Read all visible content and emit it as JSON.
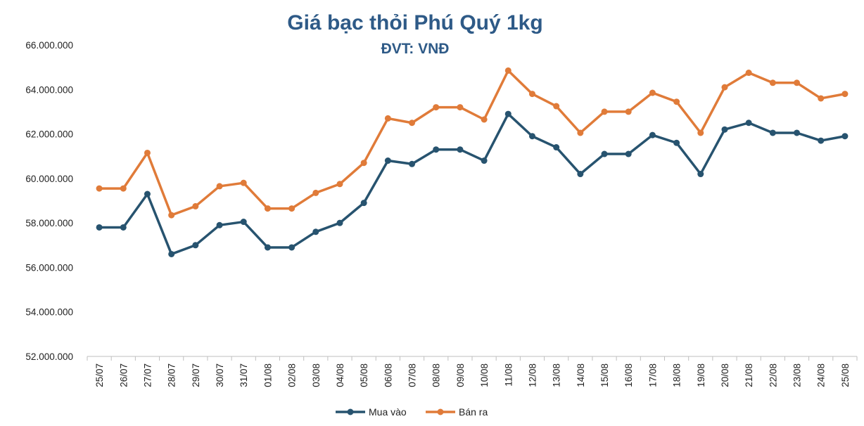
{
  "chart_data": {
    "type": "line",
    "title": "Giá bạc thỏi Phú Quý 1kg",
    "subtitle": "ĐVT: VNĐ",
    "categories": [
      "25/07",
      "26/07",
      "27/07",
      "28/07",
      "29/07",
      "30/07",
      "31/07",
      "01/08",
      "02/08",
      "03/08",
      "04/08",
      "05/08",
      "06/08",
      "07/08",
      "08/08",
      "09/08",
      "10/08",
      "11/08",
      "12/08",
      "13/08",
      "14/08",
      "15/08",
      "16/08",
      "17/08",
      "18/08",
      "19/08",
      "20/08",
      "21/08",
      "22/08",
      "23/08",
      "24/08",
      "25/08"
    ],
    "ylim": [
      52000000,
      66000000
    ],
    "yticks": [
      52000000,
      54000000,
      56000000,
      58000000,
      60000000,
      62000000,
      64000000,
      66000000
    ],
    "ytick_labels": [
      "52.000.000",
      "54.000.000",
      "56.000.000",
      "58.000.000",
      "60.000.000",
      "62.000.000",
      "64.000.000",
      "66.000.000"
    ],
    "series": [
      {
        "name": "Mua vào",
        "color": "#27536F",
        "values": [
          57800000,
          57800000,
          59300000,
          56600000,
          57000000,
          57900000,
          58050000,
          56900000,
          56900000,
          57600000,
          58000000,
          58900000,
          60800000,
          60650000,
          61300000,
          61300000,
          60800000,
          62900000,
          61900000,
          61400000,
          60200000,
          61100000,
          61100000,
          61950000,
          61600000,
          60200000,
          62200000,
          62500000,
          62050000,
          62050000,
          61700000,
          61900000
        ]
      },
      {
        "name": "Bán ra",
        "color": "#E07B39",
        "values": [
          59550000,
          59550000,
          61150000,
          58350000,
          58750000,
          59650000,
          59800000,
          58650000,
          58650000,
          59350000,
          59750000,
          60700000,
          62700000,
          62500000,
          63200000,
          63200000,
          62650000,
          64850000,
          63800000,
          63250000,
          62050000,
          63000000,
          63000000,
          63850000,
          63450000,
          62050000,
          64100000,
          64750000,
          64300000,
          64300000,
          63600000,
          63800000
        ]
      }
    ],
    "grid": false,
    "legend_position": "bottom"
  }
}
